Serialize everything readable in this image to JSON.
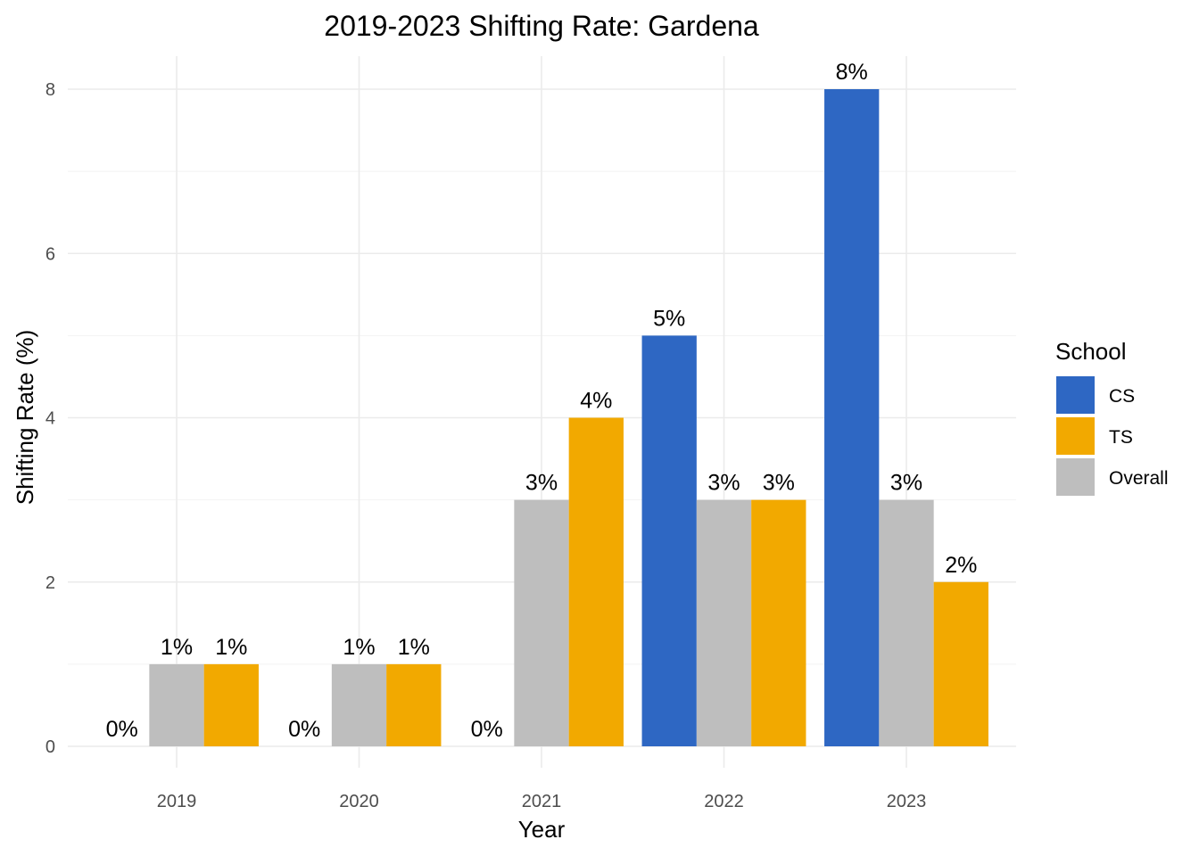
{
  "chart_data": {
    "type": "bar",
    "title": "2019-2023 Shifting Rate: Gardena",
    "xlabel": "Year",
    "ylabel": "Shifting Rate (%)",
    "categories": [
      "2019",
      "2020",
      "2021",
      "2022",
      "2023"
    ],
    "ylim": [
      0,
      8.4
    ],
    "yticks": [
      0,
      2,
      4,
      6,
      8
    ],
    "grid": true,
    "legend": {
      "title": "School",
      "position": "right"
    },
    "series": [
      {
        "name": "CS",
        "color": "#2E67C3",
        "values": [
          0,
          0,
          0,
          5,
          8
        ],
        "labels": [
          "0%",
          "0%",
          "0%",
          "5%",
          "8%"
        ]
      },
      {
        "name": "Overall",
        "color": "#BEBEBE",
        "values": [
          1,
          1,
          3,
          3,
          3
        ],
        "labels": [
          "1%",
          "1%",
          "3%",
          "3%",
          "3%"
        ]
      },
      {
        "name": "TS",
        "color": "#F2A900",
        "values": [
          1,
          1,
          4,
          3,
          2
        ],
        "labels": [
          "1%",
          "1%",
          "4%",
          "3%",
          "2%"
        ]
      }
    ],
    "legend_order": [
      "CS",
      "TS",
      "Overall"
    ]
  }
}
